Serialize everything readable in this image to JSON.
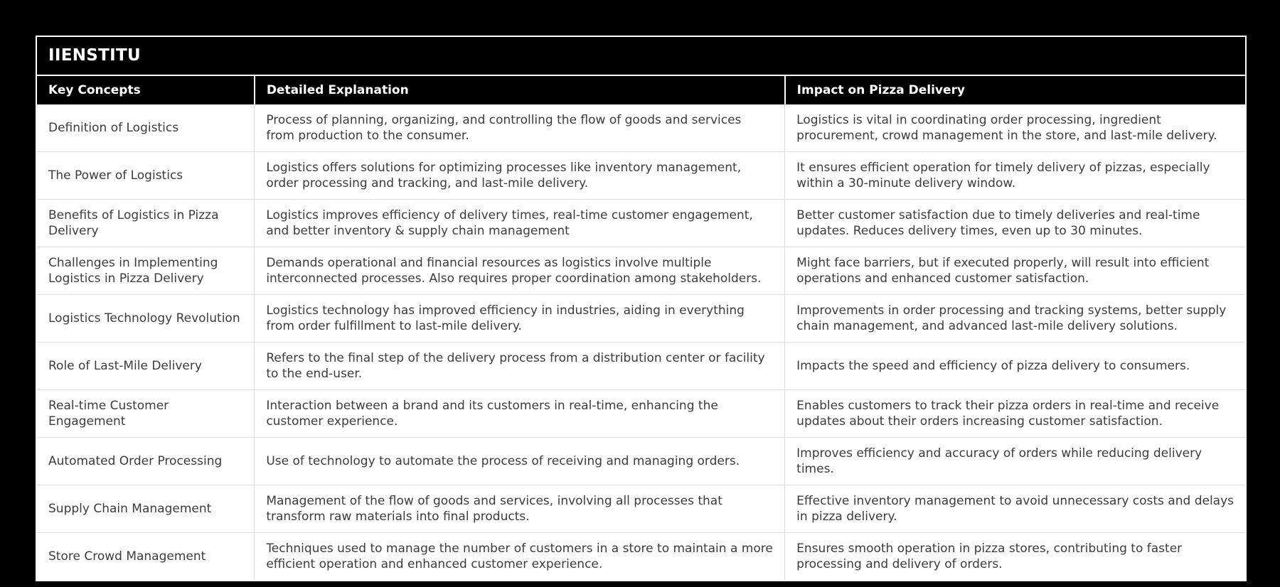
{
  "page": {
    "background_color": "#000000",
    "card_border_color": "#ffffff",
    "header_bg_color": "#000000",
    "header_text_color": "#ffffff",
    "body_bg_color": "#ffffff",
    "body_text_color": "#3c3c3c",
    "divider_color": "#dcdcdc"
  },
  "table": {
    "title": "IIENSTITU",
    "columns": [
      "Key Concepts",
      "Detailed Explanation",
      "Impact on Pizza Delivery"
    ],
    "rows": [
      {
        "concept": "Definition of Logistics",
        "explanation": "Process of planning, organizing, and controlling the flow of goods and services from production to the consumer.",
        "impact": "Logistics is vital in coordinating order processing, ingredient procurement, crowd management in the store, and last-mile delivery."
      },
      {
        "concept": "The Power of Logistics",
        "explanation": "Logistics offers solutions for optimizing processes like inventory management, order processing and tracking, and last-mile delivery.",
        "impact": "It ensures efficient operation for timely delivery of pizzas, especially within a 30-minute delivery window."
      },
      {
        "concept": "Benefits of Logistics in Pizza Delivery",
        "explanation": "Logistics improves efficiency of delivery times, real-time customer engagement, and better inventory & supply chain management",
        "impact": "Better customer satisfaction due to timely deliveries and real-time updates. Reduces delivery times, even up to 30 minutes."
      },
      {
        "concept": "Challenges in Implementing Logistics in Pizza Delivery",
        "explanation": "Demands operational and financial resources as logistics involve multiple interconnected processes. Also requires proper coordination among stakeholders.",
        "impact": "Might face barriers, but if executed properly, will result into efficient operations and enhanced customer satisfaction."
      },
      {
        "concept": "Logistics Technology Revolution",
        "explanation": "Logistics technology has improved efficiency in industries, aiding in everything from order fulfillment to last-mile delivery.",
        "impact": "Improvements in order processing and tracking systems, better supply chain management, and advanced last-mile delivery solutions."
      },
      {
        "concept": "Role of Last-Mile Delivery",
        "explanation": "Refers to the final step of the delivery process from a distribution center or facility to the end-user.",
        "impact": "Impacts the speed and efficiency of pizza delivery to consumers."
      },
      {
        "concept": "Real-time Customer Engagement",
        "explanation": "Interaction between a brand and its customers in real-time, enhancing the customer experience.",
        "impact": "Enables customers to track their pizza orders in real-time and receive updates about their orders increasing customer satisfaction."
      },
      {
        "concept": "Automated Order Processing",
        "explanation": "Use of technology to automate the process of receiving and managing orders.",
        "impact": "Improves efficiency and accuracy of orders while reducing delivery times."
      },
      {
        "concept": "Supply Chain Management",
        "explanation": "Management of the flow of goods and services, involving all processes that transform raw materials into final products.",
        "impact": "Effective inventory management to avoid unnecessary costs and delays in pizza delivery."
      },
      {
        "concept": "Store Crowd Management",
        "explanation": "Techniques used to manage the number of customers in a store to maintain a more efficient operation and enhanced customer experience.",
        "impact": "Ensures smooth operation in pizza stores, contributing to faster processing and delivery of orders."
      }
    ]
  }
}
